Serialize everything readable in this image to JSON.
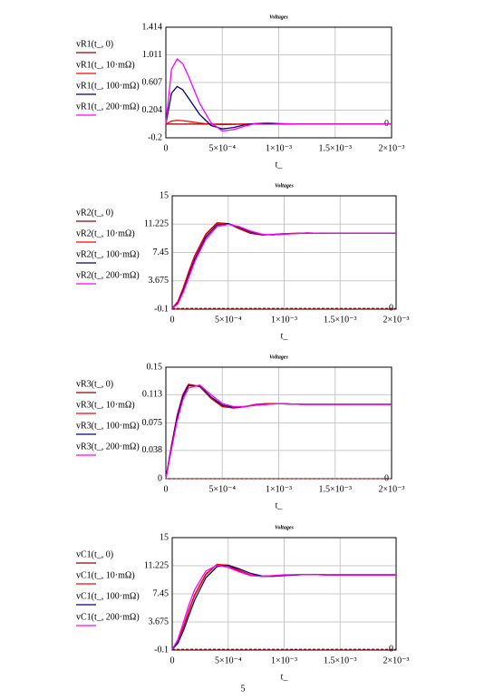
{
  "chart_data": [
    {
      "type": "line",
      "title": "Voltages",
      "x_label": "t_",
      "x": [
        0,
        5e-05,
        0.0001,
        0.00015,
        0.0002,
        0.0003,
        0.0004,
        0.0005,
        0.0006,
        0.0007,
        0.0008,
        0.0009,
        0.001,
        0.0012,
        0.0014,
        0.0016,
        0.0018,
        0.002
      ],
      "xlim": [
        0,
        0.002
      ],
      "xticks": [
        0,
        {
          "value": 0.0005,
          "label": "5×10⁻⁴"
        },
        {
          "value": 0.001,
          "label": "1×10⁻³"
        },
        {
          "value": 0.0015,
          "label": "1.5×10⁻³"
        },
        {
          "value": 0.002,
          "label": "2×10⁻³"
        }
      ],
      "ylim": [
        -0.2,
        1.414
      ],
      "yticks": [
        -0.2,
        0.204,
        0.607,
        1.011,
        1.414
      ],
      "grid": true,
      "y_marker": 0,
      "series": [
        {
          "name": "vR1(t_, 0)",
          "color": "#990000",
          "values": [
            0,
            0,
            0,
            0,
            0,
            0,
            0,
            0,
            0,
            0,
            0,
            0,
            0,
            0,
            0,
            0,
            0,
            0
          ]
        },
        {
          "name": "vR1(t_, 10·mΩ)",
          "color": "#ff0000",
          "values": [
            0,
            0.045,
            0.055,
            0.05,
            0.04,
            0.015,
            -0.002,
            -0.008,
            -0.005,
            -0.001,
            0.002,
            0.002,
            0.001,
            0,
            0,
            0,
            0,
            0
          ]
        },
        {
          "name": "vR1(t_, 100·mΩ)",
          "color": "#000080",
          "values": [
            0,
            0.45,
            0.55,
            0.5,
            0.38,
            0.14,
            -0.02,
            -0.07,
            -0.05,
            -0.01,
            0.01,
            0.01,
            0.005,
            0,
            0,
            0,
            0,
            0
          ]
        },
        {
          "name": "vR1(t_, 200·mΩ)",
          "color": "#ff00ff",
          "values": [
            0,
            0.8,
            0.95,
            0.88,
            0.7,
            0.3,
            0.02,
            -0.1,
            -0.08,
            -0.03,
            0.01,
            0.02,
            0.01,
            0,
            0,
            0,
            0,
            0
          ]
        }
      ]
    },
    {
      "type": "line",
      "title": "Voltages",
      "x_label": "t_",
      "x": [
        0,
        5e-05,
        0.0001,
        0.00015,
        0.0002,
        0.0003,
        0.0004,
        0.0005,
        0.0006,
        0.0007,
        0.0008,
        0.0009,
        0.001,
        0.0012,
        0.0014,
        0.0016,
        0.0018,
        0.002
      ],
      "xlim": [
        0,
        0.002
      ],
      "xticks": [
        0,
        {
          "value": 0.0005,
          "label": "5×10⁻⁴"
        },
        {
          "value": 0.001,
          "label": "1×10⁻³"
        },
        {
          "value": 0.0015,
          "label": "1.5×10⁻³"
        },
        {
          "value": 0.002,
          "label": "2×10⁻³"
        }
      ],
      "ylim": [
        -0.1,
        15
      ],
      "yticks": [
        -0.1,
        3.675,
        7.45,
        11.225,
        15
      ],
      "grid": true,
      "y_marker": 0,
      "series": [
        {
          "name": "vR2(t_, 0)",
          "color": "#990000",
          "values": [
            0,
            0.9,
            2.8,
            5.0,
            7.0,
            9.9,
            11.4,
            11.3,
            10.6,
            10.0,
            9.8,
            9.85,
            9.95,
            10.05,
            10,
            10,
            10,
            10
          ]
        },
        {
          "name": "vR2(t_, 10·mΩ)",
          "color": "#ff0000",
          "values": [
            0,
            0.85,
            2.7,
            4.9,
            6.9,
            9.8,
            11.3,
            11.3,
            10.7,
            10.1,
            9.8,
            9.85,
            9.95,
            10.05,
            10,
            10,
            10,
            10
          ]
        },
        {
          "name": "vR2(t_, 100·mΩ)",
          "color": "#000080",
          "values": [
            0,
            0.7,
            2.4,
            4.5,
            6.5,
            9.5,
            11.1,
            11.3,
            10.8,
            10.2,
            9.85,
            9.8,
            9.9,
            10.05,
            10,
            10,
            10,
            10
          ]
        },
        {
          "name": "vR2(t_, 200·mΩ)",
          "color": "#ff00ff",
          "values": [
            0,
            0.6,
            2.2,
            4.2,
            6.2,
            9.2,
            10.9,
            11.2,
            10.9,
            10.3,
            9.9,
            9.8,
            9.9,
            10.04,
            10,
            10,
            10,
            10
          ]
        }
      ]
    },
    {
      "type": "line",
      "title": "Voltages",
      "x_label": "t_",
      "x": [
        0,
        5e-05,
        0.0001,
        0.00015,
        0.0002,
        0.0003,
        0.0004,
        0.0005,
        0.0006,
        0.0007,
        0.0008,
        0.0009,
        0.001,
        0.0012,
        0.0014,
        0.0016,
        0.0018,
        0.002
      ],
      "xlim": [
        0,
        0.002
      ],
      "xticks": [
        0,
        {
          "value": 0.0005,
          "label": "5×10⁻⁴"
        },
        {
          "value": 0.001,
          "label": "1×10⁻³"
        },
        {
          "value": 0.0015,
          "label": "1.5×10⁻³"
        },
        {
          "value": 0.002,
          "label": "2×10⁻³"
        }
      ],
      "ylim": [
        0,
        0.15
      ],
      "yticks": [
        0,
        0.038,
        0.075,
        0.113,
        0.15
      ],
      "grid": true,
      "y_marker": 0,
      "series": [
        {
          "name": "vR3(t_, 0)",
          "color": "#990000",
          "values": [
            0,
            0.045,
            0.085,
            0.113,
            0.127,
            0.124,
            0.108,
            0.097,
            0.095,
            0.097,
            0.1,
            0.101,
            0.101,
            0.1,
            0.1,
            0.1,
            0.1,
            0.1
          ]
        },
        {
          "name": "vR3(t_, 10·mΩ)",
          "color": "#ff0000",
          "values": [
            0,
            0.044,
            0.084,
            0.112,
            0.126,
            0.124,
            0.109,
            0.098,
            0.095,
            0.097,
            0.1,
            0.101,
            0.101,
            0.1,
            0.1,
            0.1,
            0.1,
            0.1
          ]
        },
        {
          "name": "vR3(t_, 100·mΩ)",
          "color": "#000080",
          "values": [
            0,
            0.043,
            0.082,
            0.11,
            0.125,
            0.125,
            0.11,
            0.099,
            0.096,
            0.097,
            0.099,
            0.1,
            0.101,
            0.1,
            0.1,
            0.1,
            0.1,
            0.1
          ]
        },
        {
          "name": "vR3(t_, 200·mΩ)",
          "color": "#ff00ff",
          "values": [
            0,
            0.04,
            0.078,
            0.106,
            0.122,
            0.126,
            0.113,
            0.101,
            0.097,
            0.097,
            0.099,
            0.1,
            0.101,
            0.1,
            0.1,
            0.1,
            0.1,
            0.1
          ]
        }
      ]
    },
    {
      "type": "line",
      "title": "Voltages",
      "x_label": "t_",
      "x": [
        0,
        5e-05,
        0.0001,
        0.00015,
        0.0002,
        0.0003,
        0.0004,
        0.0005,
        0.0006,
        0.0007,
        0.0008,
        0.0009,
        0.001,
        0.0012,
        0.0014,
        0.0016,
        0.0018,
        0.002
      ],
      "xlim": [
        0,
        0.002
      ],
      "xticks": [
        0,
        {
          "value": 0.0005,
          "label": "5×10⁻⁴"
        },
        {
          "value": 0.001,
          "label": "1×10⁻³"
        },
        {
          "value": 0.0015,
          "label": "1.5×10⁻³"
        },
        {
          "value": 0.002,
          "label": "2×10⁻³"
        }
      ],
      "ylim": [
        -0.1,
        15
      ],
      "yticks": [
        -0.1,
        3.675,
        7.45,
        11.225,
        15
      ],
      "grid": true,
      "y_marker": 0,
      "series": [
        {
          "name": "vC1(t_, 0)",
          "color": "#990000",
          "values": [
            0,
            1.0,
            3.0,
            5.3,
            7.3,
            10.1,
            11.4,
            11.2,
            10.5,
            9.95,
            9.8,
            9.85,
            9.95,
            10.05,
            10,
            10,
            10,
            10
          ]
        },
        {
          "name": "vC1(t_, 10·mΩ)",
          "color": "#ff0000",
          "values": [
            0,
            0.95,
            2.9,
            5.2,
            7.2,
            10.0,
            11.4,
            11.3,
            10.6,
            10.0,
            9.8,
            9.85,
            9.95,
            10.05,
            10,
            10,
            10,
            10
          ]
        },
        {
          "name": "vC1(t_, 100·mΩ)",
          "color": "#000080",
          "values": [
            0,
            0.8,
            2.5,
            4.6,
            6.6,
            9.6,
            11.1,
            11.3,
            10.8,
            10.2,
            9.85,
            9.8,
            9.9,
            10.05,
            10,
            10,
            10,
            10
          ]
        },
        {
          "name": "vC1(t_, 200·mΩ)",
          "color": "#ff00ff",
          "values": [
            0,
            1.3,
            3.6,
            6.0,
            8.0,
            10.5,
            11.3,
            11.0,
            10.4,
            9.9,
            9.8,
            9.9,
            10.0,
            10.05,
            10,
            10,
            10,
            10
          ]
        }
      ]
    }
  ],
  "page_number": "5"
}
